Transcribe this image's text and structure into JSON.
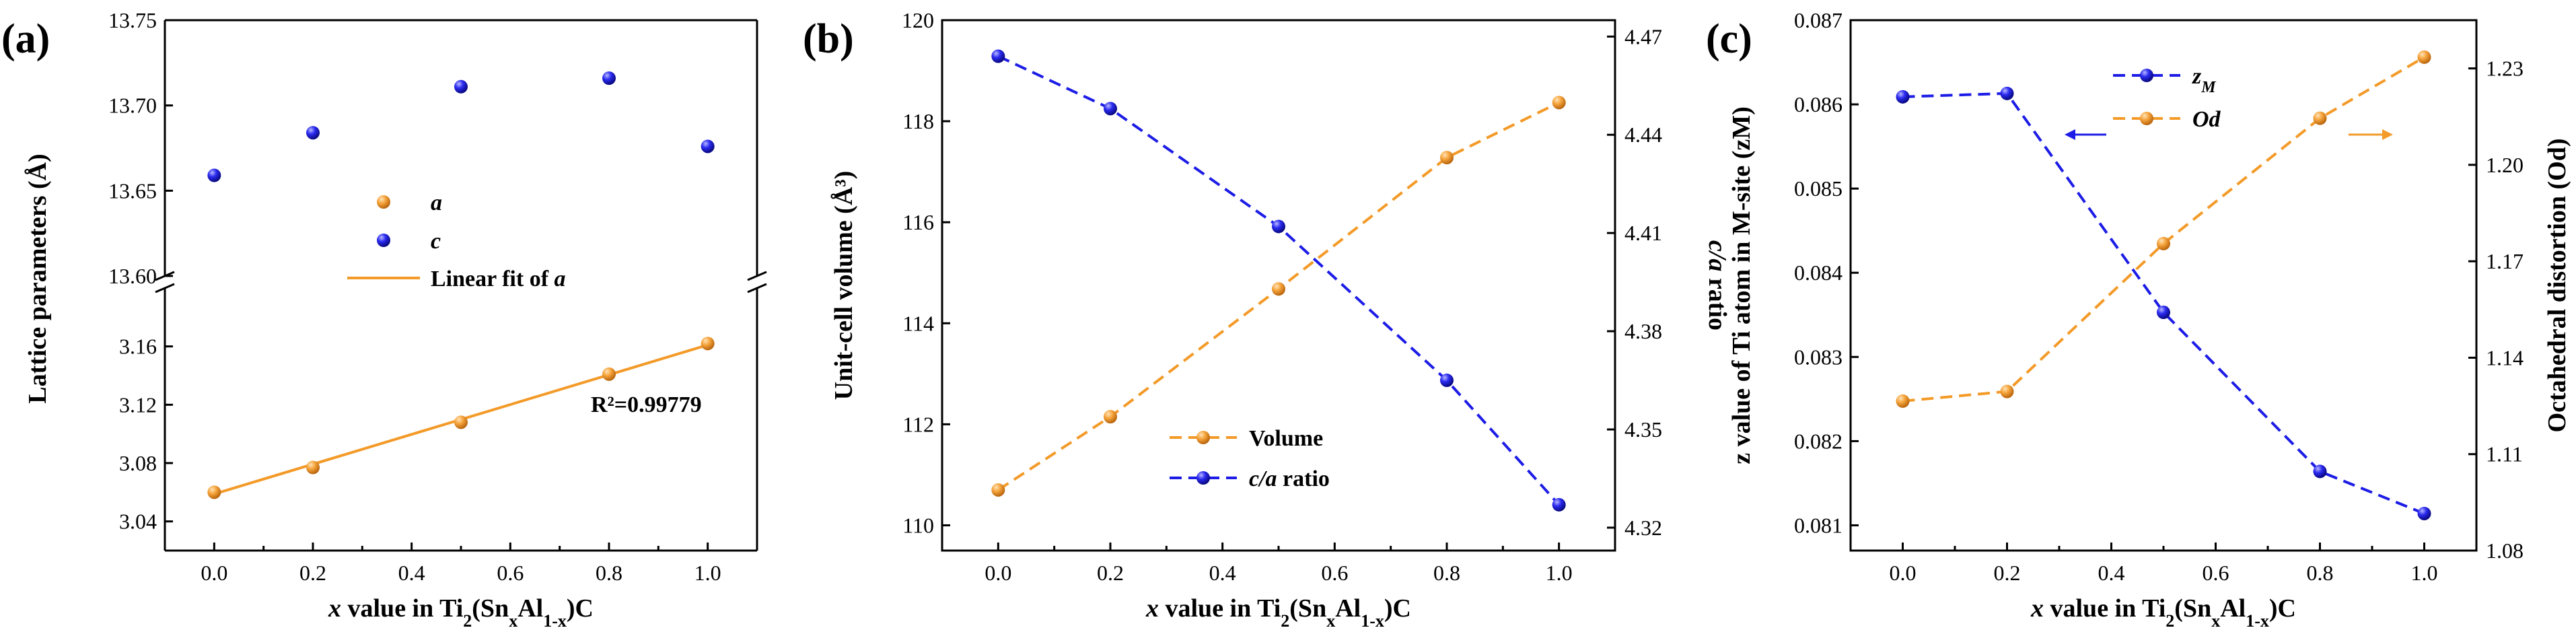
{
  "colors": {
    "orange": "#f39a28",
    "blue": "#1c1ce6",
    "axis": "#000000"
  },
  "chart_data": [
    {
      "panel_label": "(a)",
      "type": "scatter",
      "x": [
        0.0,
        0.2,
        0.5,
        0.8,
        1.0
      ],
      "x_ticks": [
        "0.0",
        "0.2",
        "0.4",
        "0.6",
        "0.8",
        "1.0"
      ],
      "xlabel_parts": {
        "var": "x",
        "pre": " value in Ti",
        "s1": "2",
        "mid": "(Sn",
        "s2": "x",
        "mid2": "Al",
        "s3": "1-x",
        "post": ")C"
      },
      "ylabel": "Lattice parameters (Å)",
      "broken_axis": true,
      "upper_ylim": [
        13.6,
        13.75
      ],
      "upper_ticks": [
        "13.60",
        "13.65",
        "13.70",
        "13.75"
      ],
      "lower_ylim": [
        3.02,
        3.2
      ],
      "lower_ticks": [
        "3.04",
        "3.08",
        "3.12",
        "3.16"
      ],
      "series": [
        {
          "name": "a",
          "values": [
            3.06,
            3.077,
            3.108,
            3.141,
            3.162
          ],
          "color": "orange",
          "axis": "lower"
        },
        {
          "name": "c",
          "values": [
            13.659,
            13.684,
            13.711,
            13.716,
            13.676
          ],
          "color": "blue",
          "axis": "upper"
        }
      ],
      "fit": {
        "name": "Linear fit of a",
        "slope": 0.1022,
        "intercept": 3.0588,
        "r2_text": "R²=0.99779"
      },
      "legend": [
        {
          "label": "a",
          "kind": "marker",
          "color": "orange"
        },
        {
          "label": "c",
          "kind": "marker",
          "color": "blue"
        },
        {
          "label_prefix": "Linear fit of ",
          "label_var": "a",
          "kind": "line",
          "color": "orange"
        }
      ]
    },
    {
      "panel_label": "(b)",
      "type": "line",
      "x": [
        0.0,
        0.2,
        0.5,
        0.8,
        1.0
      ],
      "x_ticks": [
        "0.0",
        "0.2",
        "0.4",
        "0.6",
        "0.8",
        "1.0"
      ],
      "ylabel_left": "Unit-cell volume (Å³)",
      "ylabel_right_var": "c/a",
      "ylabel_right_rest": " ratio",
      "ylim_left": [
        109.5,
        120
      ],
      "left_ticks": [
        "110",
        "112",
        "114",
        "116",
        "118",
        "120"
      ],
      "ylim_right": [
        4.313,
        4.475
      ],
      "right_ticks": [
        "4.32",
        "4.35",
        "4.38",
        "4.41",
        "4.44",
        "4.47"
      ],
      "series": [
        {
          "name": "Volume",
          "values": [
            110.7,
            112.15,
            114.68,
            117.28,
            118.37
          ],
          "color": "orange",
          "axis": "left"
        },
        {
          "name": "c/a ratio",
          "values": [
            4.464,
            4.448,
            4.412,
            4.365,
            4.327
          ],
          "color": "blue",
          "axis": "right"
        }
      ],
      "legend": [
        {
          "label": "Volume",
          "color": "orange"
        },
        {
          "label_var": "c/a",
          "label_rest": " ratio",
          "color": "blue"
        }
      ]
    },
    {
      "panel_label": "(c)",
      "type": "line",
      "x": [
        0.0,
        0.2,
        0.5,
        0.8,
        1.0
      ],
      "x_ticks": [
        "0.0",
        "0.2",
        "0.4",
        "0.6",
        "0.8",
        "1.0"
      ],
      "ylabel_left": "z value of Ti atom in M-site (zM)",
      "ylabel_right": "Octahedral distortion (Od)",
      "ylim_left": [
        0.0807,
        0.087
      ],
      "left_ticks": [
        "0.081",
        "0.082",
        "0.083",
        "0.084",
        "0.085",
        "0.086",
        "0.087"
      ],
      "ylim_right": [
        1.08,
        1.245
      ],
      "right_ticks": [
        "1.08",
        "1.11",
        "1.14",
        "1.17",
        "1.20",
        "1.23"
      ],
      "series": [
        {
          "name": "zM",
          "values": [
            0.08609,
            0.08613,
            0.08353,
            0.08164,
            0.08114
          ],
          "color": "blue",
          "axis": "left"
        },
        {
          "name": "Od",
          "values": [
            1.1265,
            1.1295,
            1.1755,
            1.2145,
            1.2335
          ],
          "color": "orange",
          "axis": "right"
        }
      ],
      "legend": [
        {
          "label_main": "z",
          "label_sub": "M",
          "color": "blue"
        },
        {
          "label_main": "Od",
          "color": "orange"
        }
      ]
    }
  ]
}
